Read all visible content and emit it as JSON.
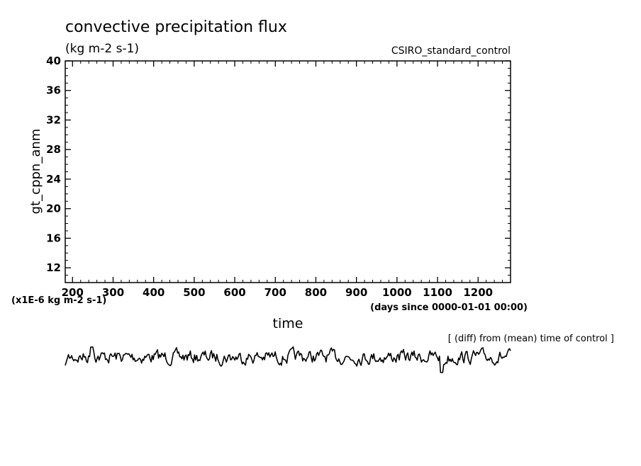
{
  "chart_data": {
    "type": "line",
    "title": "convective precipitation flux",
    "units": "(kg m-2 s-1)",
    "run_label": "CSIRO_standard_control",
    "ylabel": "gt_cppn_anm",
    "xlabel": "time",
    "x_units": "(days since 0000-01-01 00:00)",
    "y_scale_note": "(x1E-6 kg m-2 s-1)",
    "annotation": "[ (diff) from (mean) time of control ]",
    "xlim": [
      182,
      1280
    ],
    "ylim": [
      10,
      40
    ],
    "x_ticks": [
      "200",
      "300",
      "400",
      "500",
      "600",
      "700",
      "800",
      "900",
      "1000",
      "1100",
      "1200"
    ],
    "y_ticks": [
      "12",
      "16",
      "20",
      "24",
      "28",
      "32",
      "36",
      "40"
    ],
    "grid": false,
    "series": [
      {
        "values_note": "anomaly time series drawn beneath the main frame, spanning the full x range; y values not labeled"
      }
    ]
  }
}
